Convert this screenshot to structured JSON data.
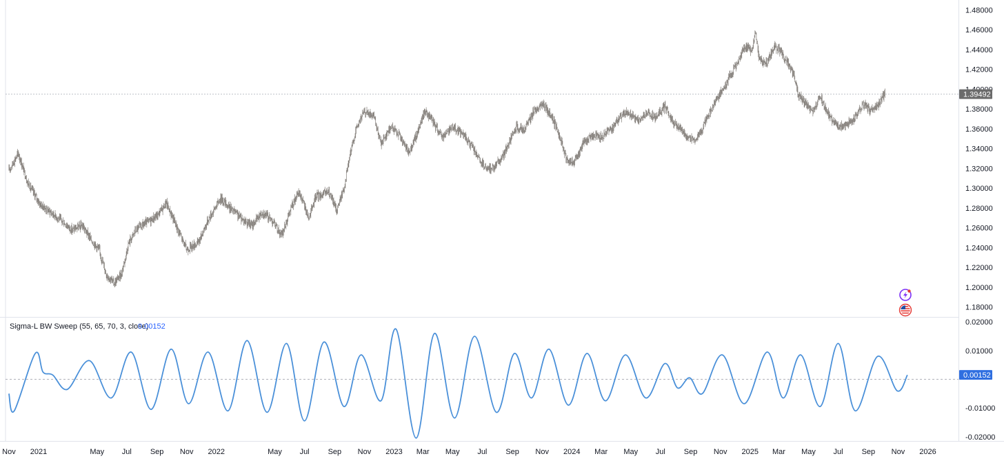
{
  "colors": {
    "candle": "#7f7a75",
    "oscillator": "#4a90d9",
    "price_badge_bg": "#6b6b6b",
    "osc_badge_bg": "#2f6fe0",
    "grid_dash": "#b2b5be",
    "pane_border": "#e0e3eb"
  },
  "chart_data": [
    {
      "type": "candlestick",
      "pane": "price",
      "y_ticks": [
        "1.48000",
        "1.46000",
        "1.44000",
        "1.42000",
        "1.40000",
        "1.38000",
        "1.36000",
        "1.34000",
        "1.32000",
        "1.30000",
        "1.28000",
        "1.26000",
        "1.24000",
        "1.22000",
        "1.20000",
        "1.18000"
      ],
      "ylim": [
        1.17,
        1.49
      ],
      "last_price_label": "1.39492",
      "last_price": 1.39492,
      "close_series": [
        {
          "x": "2020-11-01",
          "y": 1.318
        },
        {
          "x": "2020-11-20",
          "y": 1.335
        },
        {
          "x": "2020-12-10",
          "y": 1.305
        },
        {
          "x": "2021-01-05",
          "y": 1.283
        },
        {
          "x": "2021-01-25",
          "y": 1.276
        },
        {
          "x": "2021-02-15",
          "y": 1.268
        },
        {
          "x": "2021-03-10",
          "y": 1.258
        },
        {
          "x": "2021-04-01",
          "y": 1.262
        },
        {
          "x": "2021-04-20",
          "y": 1.247
        },
        {
          "x": "2021-05-05",
          "y": 1.238
        },
        {
          "x": "2021-05-20",
          "y": 1.213
        },
        {
          "x": "2021-06-05",
          "y": 1.204
        },
        {
          "x": "2021-06-20",
          "y": 1.213
        },
        {
          "x": "2021-07-05",
          "y": 1.245
        },
        {
          "x": "2021-07-20",
          "y": 1.258
        },
        {
          "x": "2021-08-10",
          "y": 1.265
        },
        {
          "x": "2021-09-01",
          "y": 1.272
        },
        {
          "x": "2021-09-20",
          "y": 1.285
        },
        {
          "x": "2021-10-10",
          "y": 1.263
        },
        {
          "x": "2021-11-01",
          "y": 1.238
        },
        {
          "x": "2021-11-25",
          "y": 1.245
        },
        {
          "x": "2021-12-15",
          "y": 1.268
        },
        {
          "x": "2022-01-10",
          "y": 1.29
        },
        {
          "x": "2022-01-25",
          "y": 1.282
        },
        {
          "x": "2022-02-20",
          "y": 1.27
        },
        {
          "x": "2022-03-15",
          "y": 1.262
        },
        {
          "x": "2022-04-05",
          "y": 1.276
        },
        {
          "x": "2022-04-25",
          "y": 1.268
        },
        {
          "x": "2022-05-15",
          "y": 1.252
        },
        {
          "x": "2022-06-05",
          "y": 1.282
        },
        {
          "x": "2022-06-20",
          "y": 1.296
        },
        {
          "x": "2022-07-10",
          "y": 1.27
        },
        {
          "x": "2022-07-25",
          "y": 1.292
        },
        {
          "x": "2022-08-20",
          "y": 1.296
        },
        {
          "x": "2022-09-05",
          "y": 1.278
        },
        {
          "x": "2022-09-20",
          "y": 1.3
        },
        {
          "x": "2022-10-01",
          "y": 1.33
        },
        {
          "x": "2022-10-15",
          "y": 1.36
        },
        {
          "x": "2022-11-01",
          "y": 1.378
        },
        {
          "x": "2022-11-20",
          "y": 1.372
        },
        {
          "x": "2022-12-05",
          "y": 1.345
        },
        {
          "x": "2022-12-25",
          "y": 1.362
        },
        {
          "x": "2023-01-10",
          "y": 1.355
        },
        {
          "x": "2023-01-30",
          "y": 1.336
        },
        {
          "x": "2023-02-15",
          "y": 1.352
        },
        {
          "x": "2023-03-05",
          "y": 1.378
        },
        {
          "x": "2023-03-20",
          "y": 1.368
        },
        {
          "x": "2023-04-10",
          "y": 1.352
        },
        {
          "x": "2023-04-30",
          "y": 1.362
        },
        {
          "x": "2023-05-20",
          "y": 1.356
        },
        {
          "x": "2023-06-10",
          "y": 1.342
        },
        {
          "x": "2023-06-25",
          "y": 1.328
        },
        {
          "x": "2023-07-10",
          "y": 1.318
        },
        {
          "x": "2023-07-25",
          "y": 1.322
        },
        {
          "x": "2023-08-10",
          "y": 1.33
        },
        {
          "x": "2023-08-25",
          "y": 1.346
        },
        {
          "x": "2023-09-10",
          "y": 1.362
        },
        {
          "x": "2023-09-25",
          "y": 1.358
        },
        {
          "x": "2023-10-15",
          "y": 1.378
        },
        {
          "x": "2023-11-01",
          "y": 1.385
        },
        {
          "x": "2023-11-20",
          "y": 1.372
        },
        {
          "x": "2023-12-05",
          "y": 1.356
        },
        {
          "x": "2023-12-20",
          "y": 1.33
        },
        {
          "x": "2024-01-05",
          "y": 1.325
        },
        {
          "x": "2024-01-25",
          "y": 1.346
        },
        {
          "x": "2024-02-15",
          "y": 1.354
        },
        {
          "x": "2024-03-05",
          "y": 1.352
        },
        {
          "x": "2024-03-25",
          "y": 1.362
        },
        {
          "x": "2024-04-10",
          "y": 1.372
        },
        {
          "x": "2024-04-25",
          "y": 1.376
        },
        {
          "x": "2024-05-15",
          "y": 1.368
        },
        {
          "x": "2024-06-01",
          "y": 1.375
        },
        {
          "x": "2024-06-20",
          "y": 1.372
        },
        {
          "x": "2024-07-10",
          "y": 1.382
        },
        {
          "x": "2024-07-25",
          "y": 1.368
        },
        {
          "x": "2024-08-10",
          "y": 1.36
        },
        {
          "x": "2024-08-25",
          "y": 1.352
        },
        {
          "x": "2024-09-10",
          "y": 1.348
        },
        {
          "x": "2024-09-25",
          "y": 1.36
        },
        {
          "x": "2024-10-10",
          "y": 1.376
        },
        {
          "x": "2024-10-25",
          "y": 1.39
        },
        {
          "x": "2024-11-15",
          "y": 1.408
        },
        {
          "x": "2024-12-01",
          "y": 1.422
        },
        {
          "x": "2024-12-20",
          "y": 1.442
        },
        {
          "x": "2025-01-05",
          "y": 1.44
        },
        {
          "x": "2025-01-12",
          "y": 1.458
        },
        {
          "x": "2025-01-20",
          "y": 1.43
        },
        {
          "x": "2025-02-05",
          "y": 1.425
        },
        {
          "x": "2025-02-20",
          "y": 1.444
        },
        {
          "x": "2025-03-05",
          "y": 1.438
        },
        {
          "x": "2025-03-20",
          "y": 1.425
        },
        {
          "x": "2025-04-01",
          "y": 1.415
        },
        {
          "x": "2025-04-10",
          "y": 1.395
        },
        {
          "x": "2025-04-25",
          "y": 1.385
        },
        {
          "x": "2025-05-10",
          "y": 1.376
        },
        {
          "x": "2025-05-25",
          "y": 1.394
        },
        {
          "x": "2025-06-05",
          "y": 1.38
        },
        {
          "x": "2025-06-20",
          "y": 1.368
        },
        {
          "x": "2025-07-05",
          "y": 1.362
        },
        {
          "x": "2025-07-20",
          "y": 1.365
        },
        {
          "x": "2025-08-05",
          "y": 1.372
        },
        {
          "x": "2025-08-20",
          "y": 1.385
        },
        {
          "x": "2025-09-05",
          "y": 1.378
        },
        {
          "x": "2025-09-20",
          "y": 1.383
        },
        {
          "x": "2025-10-05",
          "y": 1.395
        }
      ]
    },
    {
      "type": "line",
      "pane": "indicator",
      "title": "Sigma-L BW Sweep (55, 65, 70, 3, close)",
      "value_label": "0.00152",
      "last_value": 0.00152,
      "zero_line": 0,
      "y_ticks": [
        "0.02000",
        "0.01000",
        "-0.01000",
        "-0.02000"
      ],
      "ylim": [
        -0.0215,
        0.0215
      ],
      "series": [
        {
          "x": "2020-11-01",
          "y": -0.005
        },
        {
          "x": "2020-11-12",
          "y": -0.011
        },
        {
          "x": "2020-12-25",
          "y": 0.009
        },
        {
          "x": "2021-01-10",
          "y": 0.0025
        },
        {
          "x": "2021-01-30",
          "y": 0.0015
        },
        {
          "x": "2021-03-01",
          "y": -0.0035
        },
        {
          "x": "2021-04-15",
          "y": 0.0065
        },
        {
          "x": "2021-05-30",
          "y": -0.0065
        },
        {
          "x": "2021-07-10",
          "y": 0.0095
        },
        {
          "x": "2021-08-20",
          "y": -0.0105
        },
        {
          "x": "2021-09-30",
          "y": 0.0105
        },
        {
          "x": "2021-11-05",
          "y": -0.0085
        },
        {
          "x": "2021-12-15",
          "y": 0.0095
        },
        {
          "x": "2022-01-25",
          "y": -0.011
        },
        {
          "x": "2022-03-05",
          "y": 0.0135
        },
        {
          "x": "2022-04-15",
          "y": -0.0115
        },
        {
          "x": "2022-05-25",
          "y": 0.0125
        },
        {
          "x": "2022-07-01",
          "y": -0.0145
        },
        {
          "x": "2022-08-10",
          "y": 0.013
        },
        {
          "x": "2022-09-20",
          "y": -0.0095
        },
        {
          "x": "2022-10-25",
          "y": 0.0085
        },
        {
          "x": "2022-12-05",
          "y": -0.0075
        },
        {
          "x": "2023-01-05",
          "y": 0.0175
        },
        {
          "x": "2023-02-15",
          "y": -0.0205
        },
        {
          "x": "2023-03-25",
          "y": 0.016
        },
        {
          "x": "2023-05-05",
          "y": -0.0135
        },
        {
          "x": "2023-06-15",
          "y": 0.015
        },
        {
          "x": "2023-07-30",
          "y": -0.0115
        },
        {
          "x": "2023-09-05",
          "y": 0.009
        },
        {
          "x": "2023-10-10",
          "y": -0.0065
        },
        {
          "x": "2023-11-15",
          "y": 0.0105
        },
        {
          "x": "2023-12-25",
          "y": -0.009
        },
        {
          "x": "2024-02-01",
          "y": 0.009
        },
        {
          "x": "2024-03-10",
          "y": -0.0075
        },
        {
          "x": "2024-04-20",
          "y": 0.0085
        },
        {
          "x": "2024-06-01",
          "y": -0.0065
        },
        {
          "x": "2024-07-10",
          "y": 0.0055
        },
        {
          "x": "2024-08-05",
          "y": -0.003
        },
        {
          "x": "2024-08-30",
          "y": 0.0005
        },
        {
          "x": "2024-09-25",
          "y": -0.005
        },
        {
          "x": "2024-11-05",
          "y": 0.0085
        },
        {
          "x": "2024-12-20",
          "y": -0.0085
        },
        {
          "x": "2025-02-05",
          "y": 0.0095
        },
        {
          "x": "2025-03-10",
          "y": -0.0065
        },
        {
          "x": "2025-04-15",
          "y": 0.0085
        },
        {
          "x": "2025-05-25",
          "y": -0.0095
        },
        {
          "x": "2025-07-01",
          "y": 0.0125
        },
        {
          "x": "2025-08-05",
          "y": -0.011
        },
        {
          "x": "2025-09-20",
          "y": 0.008
        },
        {
          "x": "2025-10-30",
          "y": -0.004
        },
        {
          "x": "2025-11-20",
          "y": 0.0015
        }
      ]
    }
  ],
  "x_axis": {
    "domain": [
      "2020-10-25",
      "2026-03-05"
    ],
    "ticks": [
      {
        "date": "2020-11-01",
        "label": "Nov"
      },
      {
        "date": "2021-01-01",
        "label": "2021"
      },
      {
        "date": "2021-05-01",
        "label": "May"
      },
      {
        "date": "2021-07-01",
        "label": "Jul"
      },
      {
        "date": "2021-09-01",
        "label": "Sep"
      },
      {
        "date": "2021-11-01",
        "label": "Nov"
      },
      {
        "date": "2022-01-01",
        "label": "2022"
      },
      {
        "date": "2022-05-01",
        "label": "May"
      },
      {
        "date": "2022-07-01",
        "label": "Jul"
      },
      {
        "date": "2022-09-01",
        "label": "Sep"
      },
      {
        "date": "2022-11-01",
        "label": "Nov"
      },
      {
        "date": "2023-01-01",
        "label": "2023"
      },
      {
        "date": "2023-03-01",
        "label": "Mar"
      },
      {
        "date": "2023-05-01",
        "label": "May"
      },
      {
        "date": "2023-07-01",
        "label": "Jul"
      },
      {
        "date": "2023-09-01",
        "label": "Sep"
      },
      {
        "date": "2023-11-01",
        "label": "Nov"
      },
      {
        "date": "2024-01-01",
        "label": "2024"
      },
      {
        "date": "2024-03-01",
        "label": "Mar"
      },
      {
        "date": "2024-05-01",
        "label": "May"
      },
      {
        "date": "2024-07-01",
        "label": "Jul"
      },
      {
        "date": "2024-09-01",
        "label": "Sep"
      },
      {
        "date": "2024-11-01",
        "label": "Nov"
      },
      {
        "date": "2025-01-01",
        "label": "2025"
      },
      {
        "date": "2025-03-01",
        "label": "Mar"
      },
      {
        "date": "2025-05-01",
        "label": "May"
      },
      {
        "date": "2025-07-01",
        "label": "Jul"
      },
      {
        "date": "2025-09-01",
        "label": "Sep"
      },
      {
        "date": "2025-11-01",
        "label": "Nov"
      },
      {
        "date": "2026-01-01",
        "label": "2026"
      }
    ]
  },
  "icons": [
    "lightning-badge-icon",
    "us-flag-icon"
  ]
}
